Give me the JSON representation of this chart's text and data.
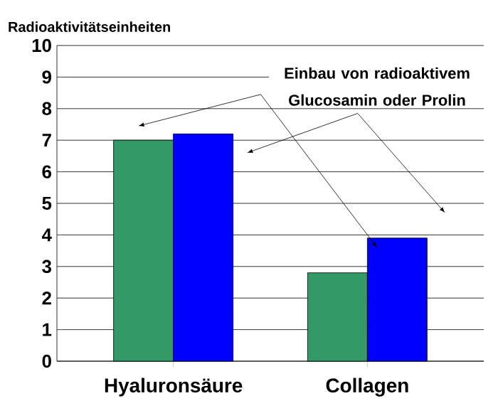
{
  "chart_data": {
    "type": "bar",
    "ylabel": "Radioaktivitätseinheiten",
    "categories": [
      "Hyaluronsäure",
      "Collagen"
    ],
    "series": [
      {
        "color": "#339966",
        "values": [
          7.0,
          2.8
        ]
      },
      {
        "color": "#0000ff",
        "values": [
          7.2,
          3.9
        ]
      }
    ],
    "ylim": [
      0,
      10
    ],
    "yticks": [
      0,
      1,
      2,
      3,
      4,
      5,
      6,
      7,
      8,
      9,
      10
    ],
    "grid": "y",
    "annotations": [
      "Einbau von radioaktivem Glucosamin oder Prolin"
    ]
  }
}
